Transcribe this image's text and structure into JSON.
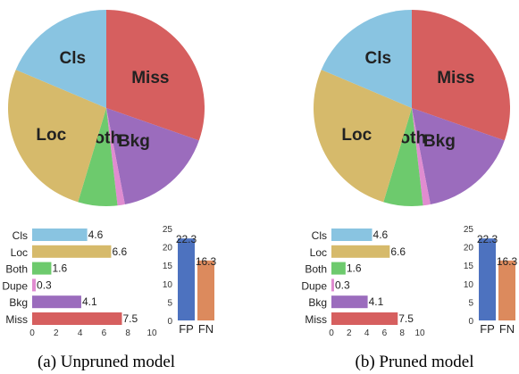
{
  "colors": {
    "Cls": "#89c4e1",
    "Loc": "#d6ba6b",
    "Both": "#6dca6d",
    "Dupe": "#e08cd0",
    "Bkg": "#9b6cbd",
    "Miss": "#d65f5f",
    "FP": "#4d72bf",
    "FN": "#dc8a5d"
  },
  "chart_data": [
    {
      "caption": "(a) Unpruned model",
      "pie": {
        "type": "pie",
        "labels": [
          "Miss",
          "Bkg",
          "Dupe",
          "Both",
          "Loc",
          "Cls"
        ],
        "values": [
          7.5,
          4.1,
          0.3,
          1.6,
          6.6,
          4.6
        ],
        "shown_labels": [
          "Miss",
          "Bkg",
          "Both",
          "Loc",
          "Cls"
        ]
      },
      "error_bars": {
        "type": "bar",
        "orientation": "horizontal",
        "categories": [
          "Cls",
          "Loc",
          "Both",
          "Dupe",
          "Bkg",
          "Miss"
        ],
        "values": [
          4.6,
          6.6,
          1.6,
          0.3,
          4.1,
          7.5
        ],
        "value_labels": [
          "4.6",
          "6.6",
          "1.6",
          "0.3",
          "4.1",
          "7.5"
        ],
        "xlim": [
          0,
          10
        ],
        "xticks": [
          "0",
          "2",
          "4",
          "6",
          "8",
          "10"
        ]
      },
      "fp_fn": {
        "type": "bar",
        "categories": [
          "FP",
          "FN"
        ],
        "values": [
          22.3,
          16.3
        ],
        "value_labels": [
          "22.3",
          "16.3"
        ],
        "ylim": [
          0,
          25
        ],
        "yticks": [
          "0",
          "5",
          "10",
          "15",
          "20",
          "25"
        ]
      }
    },
    {
      "caption": "(b) Pruned model",
      "pie": {
        "type": "pie",
        "labels": [
          "Miss",
          "Bkg",
          "Dupe",
          "Both",
          "Loc",
          "Cls"
        ],
        "values": [
          7.5,
          4.1,
          0.3,
          1.6,
          6.6,
          4.6
        ],
        "shown_labels": [
          "Miss",
          "Bkg",
          "Both",
          "Loc",
          "Cls"
        ]
      },
      "error_bars": {
        "type": "bar",
        "orientation": "horizontal",
        "categories": [
          "Cls",
          "Loc",
          "Both",
          "Dupe",
          "Bkg",
          "Miss"
        ],
        "values": [
          4.6,
          6.6,
          1.6,
          0.3,
          4.1,
          7.5
        ],
        "value_labels": [
          "4.6",
          "6.6",
          "1.6",
          "0.3",
          "4.1",
          "7.5"
        ],
        "xlim": [
          0,
          10
        ],
        "xticks": [
          "0",
          "2",
          "4",
          "6",
          "8",
          "10"
        ]
      },
      "fp_fn": {
        "type": "bar",
        "categories": [
          "FP",
          "FN"
        ],
        "values": [
          22.3,
          16.3
        ],
        "value_labels": [
          "22.3",
          "16.3"
        ],
        "ylim": [
          0,
          25
        ],
        "yticks": [
          "0",
          "5",
          "10",
          "15",
          "20",
          "25"
        ]
      }
    }
  ]
}
